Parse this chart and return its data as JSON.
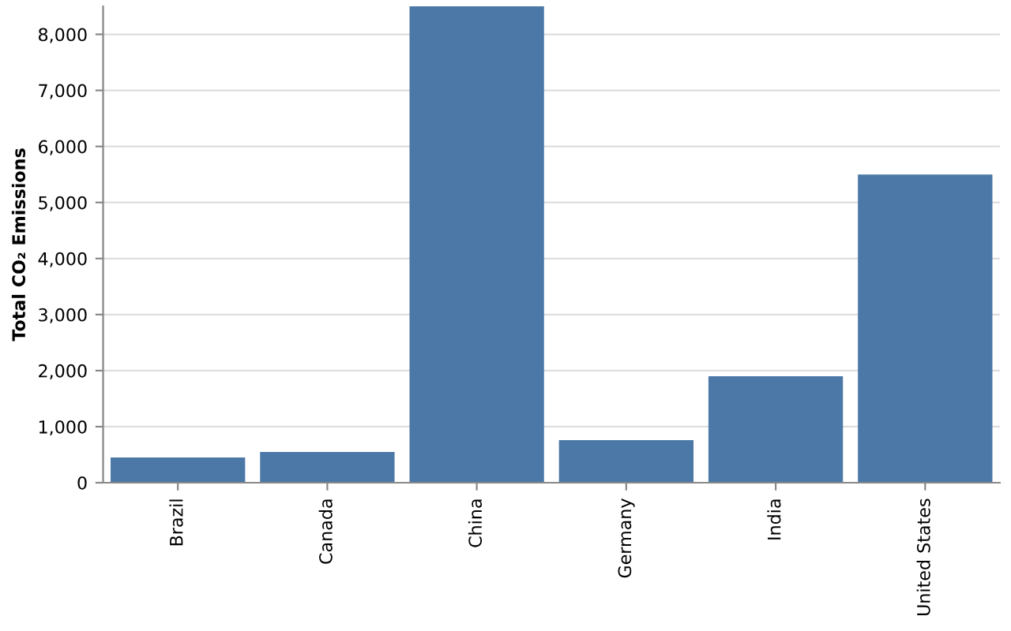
{
  "chart_data": {
    "type": "bar",
    "ylabel": "Total CO₂ Emissions",
    "categories": [
      "Brazil",
      "Canada",
      "China",
      "Germany",
      "India",
      "United States"
    ],
    "values": [
      450,
      550,
      8500,
      760,
      1900,
      5500
    ],
    "color": "#4c78a8",
    "ylim": [
      0,
      8500
    ],
    "yticks": [
      0,
      {
        "value": 1000,
        "label": "1,000"
      },
      {
        "value": 2000,
        "label": "2,000"
      },
      {
        "value": 3000,
        "label": "3,000"
      },
      {
        "value": 4000,
        "label": "4,000"
      },
      {
        "value": 5000,
        "label": "5,000"
      },
      {
        "value": 6000,
        "label": "6,000"
      },
      {
        "value": 7000,
        "label": "7,000"
      },
      {
        "value": 8000,
        "label": "8,000"
      }
    ],
    "grid": "y"
  }
}
